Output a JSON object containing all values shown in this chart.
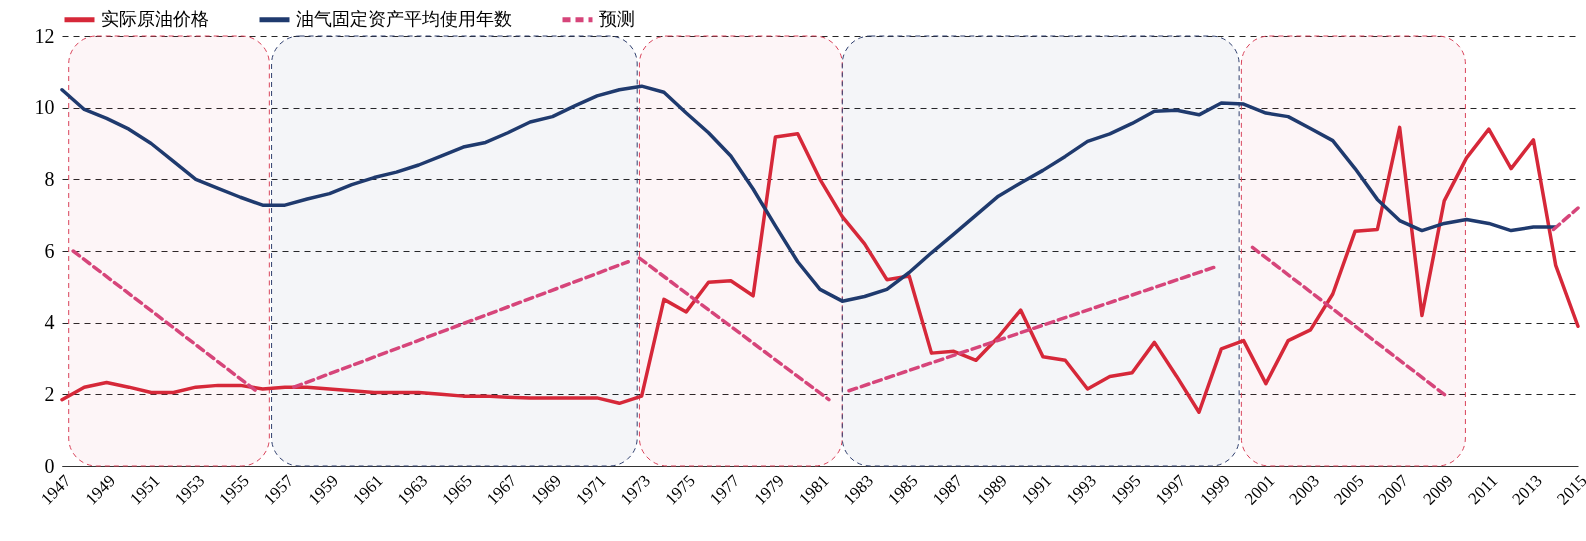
{
  "chart_data": {
    "type": "line",
    "x": [
      1947,
      1948,
      1949,
      1950,
      1951,
      1952,
      1953,
      1954,
      1955,
      1956,
      1957,
      1958,
      1959,
      1960,
      1961,
      1962,
      1963,
      1964,
      1965,
      1966,
      1967,
      1968,
      1969,
      1970,
      1971,
      1972,
      1973,
      1974,
      1975,
      1976,
      1977,
      1978,
      1979,
      1980,
      1981,
      1982,
      1983,
      1984,
      1985,
      1986,
      1987,
      1988,
      1989,
      1990,
      1991,
      1992,
      1993,
      1994,
      1995,
      1996,
      1997,
      1998,
      1999,
      2000,
      2001,
      2002,
      2003,
      2004,
      2005,
      2006,
      2007,
      2008,
      2009,
      2010,
      2011,
      2012,
      2013,
      2014,
      2015
    ],
    "series": [
      {
        "name": "实际原油价格",
        "color": "#d62839",
        "values": [
          1.85,
          2.2,
          2.33,
          2.2,
          2.05,
          2.05,
          2.2,
          2.25,
          2.25,
          2.15,
          2.2,
          2.2,
          2.15,
          2.1,
          2.05,
          2.05,
          2.05,
          2.0,
          1.95,
          1.95,
          1.92,
          1.9,
          1.9,
          1.9,
          1.9,
          1.75,
          1.95,
          4.65,
          4.3,
          5.13,
          5.17,
          4.75,
          9.18,
          9.27,
          8.0,
          6.96,
          6.2,
          5.2,
          5.3,
          3.15,
          3.2,
          2.95,
          3.6,
          4.35,
          3.05,
          2.95,
          2.15,
          2.5,
          2.6,
          3.45,
          2.5,
          1.5,
          3.27,
          3.5,
          2.3,
          3.5,
          3.8,
          4.8,
          6.55,
          6.6,
          9.45,
          4.2,
          7.4,
          8.6,
          9.4,
          8.3,
          9.1,
          5.6,
          3.9
        ]
      },
      {
        "name": "油气固定资产平均使用年数",
        "color": "#1f3a6e",
        "values": [
          10.5,
          9.95,
          9.7,
          9.4,
          9.0,
          8.5,
          8.0,
          7.75,
          7.5,
          7.28,
          7.28,
          7.45,
          7.6,
          7.85,
          8.05,
          8.2,
          8.4,
          8.65,
          8.9,
          9.03,
          9.3,
          9.6,
          9.75,
          10.05,
          10.33,
          10.5,
          10.6,
          10.43,
          9.85,
          9.3,
          8.65,
          7.73,
          6.7,
          5.7,
          4.93,
          4.6,
          4.73,
          4.93,
          5.4,
          5.95,
          6.47,
          7.0,
          7.53,
          7.9,
          8.25,
          8.64,
          9.06,
          9.27,
          9.56,
          9.9,
          9.93,
          9.8,
          10.13,
          10.1,
          9.85,
          9.75,
          9.42,
          9.08,
          8.3,
          7.44,
          6.85,
          6.57,
          6.77,
          6.88,
          6.77,
          6.57,
          6.67,
          6.67,
          null
        ]
      },
      {
        "name": "预测",
        "color": "#d6457a",
        "line_style": "dashed",
        "x": [
          1947.5,
          1955.7,
          1956.5,
          1957.4,
          1972.4,
          1972.6,
          1972.9,
          1981.4,
          1981.8,
          1982.3,
          1998.7,
          1999.5,
          2000.4,
          2009.1,
          2011,
          2013.9,
          2015
        ],
        "values": [
          6,
          2.1,
          null,
          2.2,
          5.7,
          null,
          5.8,
          1.85,
          null,
          2.1,
          5.55,
          null,
          6.1,
          1.95,
          null,
          6.6,
          7.2
        ]
      }
    ],
    "xlim": [
      1947,
      2015
    ],
    "xticks": [
      1947,
      1949,
      1951,
      1953,
      1955,
      1957,
      1959,
      1961,
      1963,
      1965,
      1967,
      1969,
      1971,
      1973,
      1975,
      1977,
      1979,
      1981,
      1983,
      1985,
      1987,
      1989,
      1991,
      1993,
      1995,
      1997,
      1999,
      2001,
      2003,
      2005,
      2007,
      2009,
      2011,
      2013,
      2015
    ],
    "ylim": [
      0,
      12
    ],
    "yticks": [
      0,
      2,
      4,
      6,
      8,
      10,
      12
    ],
    "bands": [
      {
        "axis": "x",
        "from": 1947.3,
        "to": 1956.3,
        "color": "#d9435a"
      },
      {
        "axis": "x",
        "from": 1956.4,
        "to": 1972.8,
        "color": "#2f3f6e"
      },
      {
        "axis": "x",
        "from": 1972.9,
        "to": 1982.0,
        "color": "#d9435a"
      },
      {
        "axis": "x",
        "from": 1982.0,
        "to": 1999.8,
        "color": "#2f3f6e"
      },
      {
        "axis": "x",
        "from": 1999.9,
        "to": 2009.95,
        "color": "#d9435a"
      }
    ],
    "grid": "y",
    "legend": "top"
  }
}
